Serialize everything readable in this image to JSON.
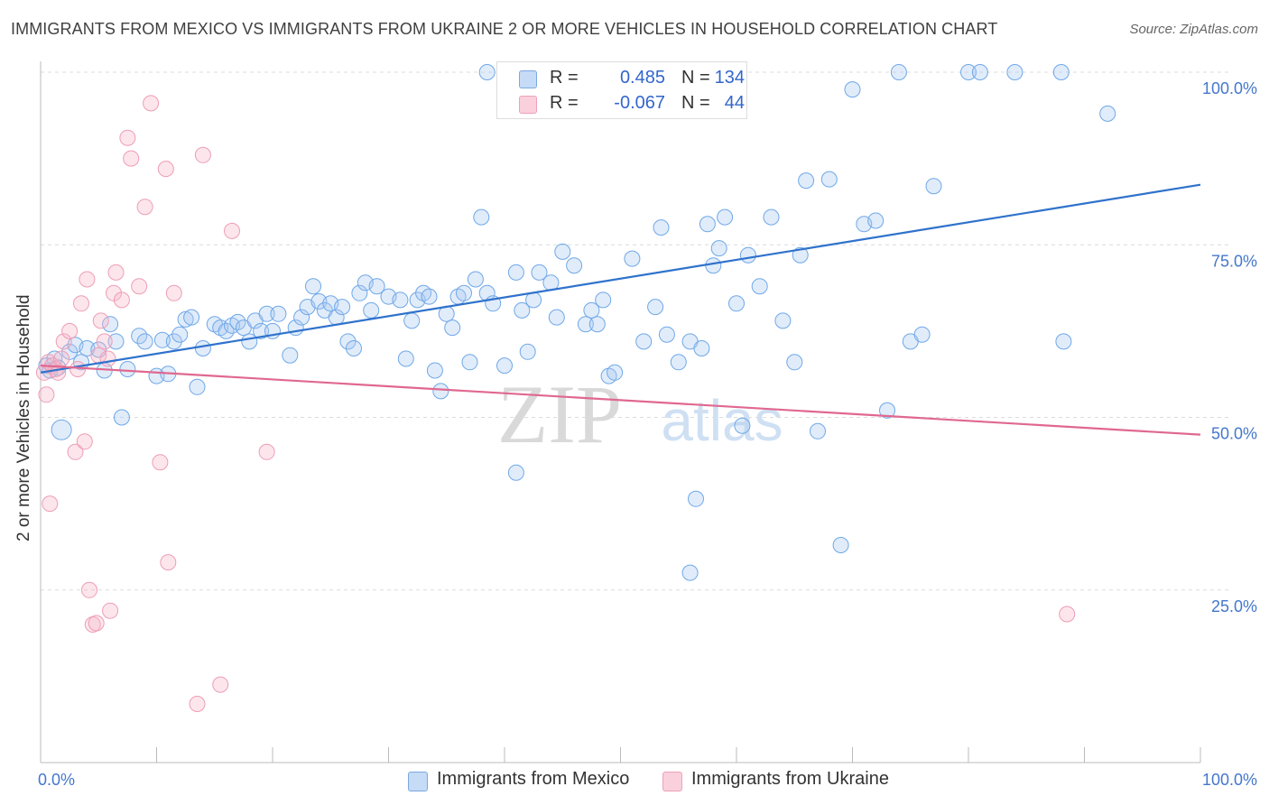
{
  "title": "IMMIGRANTS FROM MEXICO VS IMMIGRANTS FROM UKRAINE 2 OR MORE VEHICLES IN HOUSEHOLD CORRELATION CHART",
  "source": "Source: ZipAtlas.com",
  "watermark": {
    "zip": "ZIP",
    "atlas": "atlas"
  },
  "legend": {
    "rows": [
      {
        "r_label": "R =",
        "r_value": "0.485",
        "n_label": "N =",
        "n_value": "134",
        "color": "#a9c8f0"
      },
      {
        "r_label": "R =",
        "r_value": "-0.067",
        "n_label": "N =",
        "n_value": "44",
        "color": "#f5b7c9"
      }
    ]
  },
  "bottom_legend": [
    "Immigrants from Mexico",
    "Immigrants from Ukraine"
  ],
  "chart_data": {
    "type": "scatter",
    "xlabel": "",
    "ylabel": "2 or more Vehicles in Household",
    "xlim": [
      0,
      100
    ],
    "ylim": [
      0,
      100
    ],
    "x_tick_labels": [
      "0.0%",
      "100.0%"
    ],
    "y_tick_labels": [
      "25.0%",
      "50.0%",
      "75.0%",
      "100.0%"
    ],
    "y_ticks": [
      25,
      50,
      75,
      100
    ],
    "grid": true,
    "legend_position": "bottom",
    "series": [
      {
        "name": "Immigrants from Mexico",
        "color": "#6fa8e8",
        "trend": {
          "x": [
            0,
            100
          ],
          "y": [
            56.5,
            83.7
          ],
          "color": "#2f72cc"
        },
        "points": [
          [
            0.5,
            57.5
          ],
          [
            0.8,
            56.8
          ],
          [
            1.2,
            58.5
          ],
          [
            1.5,
            57.2
          ],
          [
            1.8,
            48.2
          ],
          [
            2.5,
            59.5
          ],
          [
            3,
            60.5
          ],
          [
            3.5,
            58
          ],
          [
            4,
            60
          ],
          [
            5,
            59.8
          ],
          [
            5.5,
            56.8
          ],
          [
            6,
            63.5
          ],
          [
            6.5,
            61
          ],
          [
            7,
            50
          ],
          [
            7.5,
            57
          ],
          [
            8.5,
            61.8
          ],
          [
            9,
            61
          ],
          [
            10,
            56
          ],
          [
            10.5,
            61.2
          ],
          [
            11,
            56.3
          ],
          [
            11.5,
            61
          ],
          [
            12,
            62
          ],
          [
            12.5,
            64.2
          ],
          [
            13,
            64.5
          ],
          [
            13.5,
            54.4
          ],
          [
            14,
            60
          ],
          [
            15,
            63.5
          ],
          [
            15.5,
            63
          ],
          [
            16,
            62.5
          ],
          [
            16.5,
            63.3
          ],
          [
            17,
            63.8
          ],
          [
            17.5,
            63
          ],
          [
            18,
            61
          ],
          [
            18.5,
            64
          ],
          [
            19,
            62.5
          ],
          [
            19.5,
            65
          ],
          [
            20,
            62.5
          ],
          [
            20.5,
            65
          ],
          [
            21.5,
            59
          ],
          [
            22,
            63
          ],
          [
            22.5,
            64.5
          ],
          [
            23,
            66
          ],
          [
            23.5,
            69
          ],
          [
            24,
            66.8
          ],
          [
            24.5,
            65.5
          ],
          [
            25,
            66.5
          ],
          [
            25.5,
            64.5
          ],
          [
            26,
            66
          ],
          [
            26.5,
            61
          ],
          [
            27,
            60
          ],
          [
            27.5,
            68
          ],
          [
            28,
            69.5
          ],
          [
            28.5,
            65.5
          ],
          [
            29,
            69
          ],
          [
            30,
            67.5
          ],
          [
            31,
            67
          ],
          [
            31.5,
            58.5
          ],
          [
            32,
            64
          ],
          [
            32.5,
            67
          ],
          [
            33,
            68
          ],
          [
            33.5,
            67.5
          ],
          [
            34,
            56.8
          ],
          [
            34.5,
            53.8
          ],
          [
            35,
            65
          ],
          [
            35.5,
            63
          ],
          [
            36,
            67.5
          ],
          [
            36.5,
            68
          ],
          [
            37,
            58
          ],
          [
            37.5,
            70
          ],
          [
            38,
            79
          ],
          [
            38.5,
            68
          ],
          [
            39,
            66.5
          ],
          [
            40,
            57.5
          ],
          [
            41,
            71
          ],
          [
            41.5,
            65.5
          ],
          [
            42,
            59.5
          ],
          [
            42.5,
            67
          ],
          [
            43,
            71
          ],
          [
            44,
            69.5
          ],
          [
            44.5,
            64.5
          ],
          [
            45,
            74
          ],
          [
            46,
            72
          ],
          [
            47,
            63.5
          ],
          [
            47.5,
            65.5
          ],
          [
            48,
            63.5
          ],
          [
            48.5,
            67
          ],
          [
            49,
            56
          ],
          [
            49.5,
            56.5
          ],
          [
            51,
            73
          ],
          [
            52,
            61
          ],
          [
            53,
            66
          ],
          [
            53.5,
            77.5
          ],
          [
            54,
            62
          ],
          [
            55,
            58
          ],
          [
            56,
            61
          ],
          [
            56.5,
            38.2
          ],
          [
            57,
            60
          ],
          [
            57.5,
            78
          ],
          [
            58,
            72
          ],
          [
            58.5,
            74.5
          ],
          [
            59,
            79
          ],
          [
            60,
            66.5
          ],
          [
            60.5,
            48.8
          ],
          [
            61,
            73.5
          ],
          [
            62,
            69
          ],
          [
            63,
            79
          ],
          [
            64,
            64
          ],
          [
            65,
            58
          ],
          [
            65.5,
            73.5
          ],
          [
            66,
            84.3
          ],
          [
            67,
            48
          ],
          [
            68,
            84.5
          ],
          [
            69,
            31.5
          ],
          [
            70,
            97.5
          ],
          [
            71,
            78
          ],
          [
            72,
            78.5
          ],
          [
            73,
            51
          ],
          [
            74,
            100
          ],
          [
            75,
            61
          ],
          [
            76,
            62
          ],
          [
            77,
            83.5
          ],
          [
            80,
            100
          ],
          [
            81,
            100
          ],
          [
            84,
            100
          ],
          [
            88,
            100
          ],
          [
            88.2,
            61
          ],
          [
            92,
            94
          ],
          [
            41,
            42
          ],
          [
            56,
            27.5
          ],
          [
            38.5,
            100
          ],
          [
            40,
            100
          ]
        ]
      },
      {
        "name": "Immigrants from Ukraine",
        "color": "#f1a0b8",
        "trend": {
          "x": [
            0,
            100
          ],
          "y": [
            57.5,
            47.5
          ],
          "color": "#e06890"
        },
        "points": [
          [
            0.3,
            56.5
          ],
          [
            0.5,
            53.3
          ],
          [
            0.7,
            58
          ],
          [
            0.8,
            37.5
          ],
          [
            1,
            57.5
          ],
          [
            1.3,
            57
          ],
          [
            1.5,
            56.5
          ],
          [
            1.8,
            58.5
          ],
          [
            2,
            61
          ],
          [
            2.5,
            62.5
          ],
          [
            3,
            45
          ],
          [
            3.2,
            57
          ],
          [
            3.5,
            66.5
          ],
          [
            3.8,
            46.5
          ],
          [
            4,
            70
          ],
          [
            4.2,
            25
          ],
          [
            4.5,
            20
          ],
          [
            4.8,
            20.2
          ],
          [
            5,
            59
          ],
          [
            5.2,
            64
          ],
          [
            5.5,
            61
          ],
          [
            5.8,
            58.5
          ],
          [
            6,
            22
          ],
          [
            6.3,
            68
          ],
          [
            6.5,
            71
          ],
          [
            7,
            67
          ],
          [
            7.5,
            90.5
          ],
          [
            7.8,
            87.5
          ],
          [
            8.5,
            69
          ],
          [
            9,
            80.5
          ],
          [
            9.5,
            95.5
          ],
          [
            10.3,
            43.5
          ],
          [
            10.8,
            86
          ],
          [
            11,
            29
          ],
          [
            11.5,
            68
          ],
          [
            13.5,
            8.5
          ],
          [
            14,
            88
          ],
          [
            15.5,
            11.3
          ],
          [
            16.5,
            77
          ],
          [
            19.5,
            45
          ],
          [
            88.5,
            21.5
          ]
        ]
      }
    ]
  }
}
